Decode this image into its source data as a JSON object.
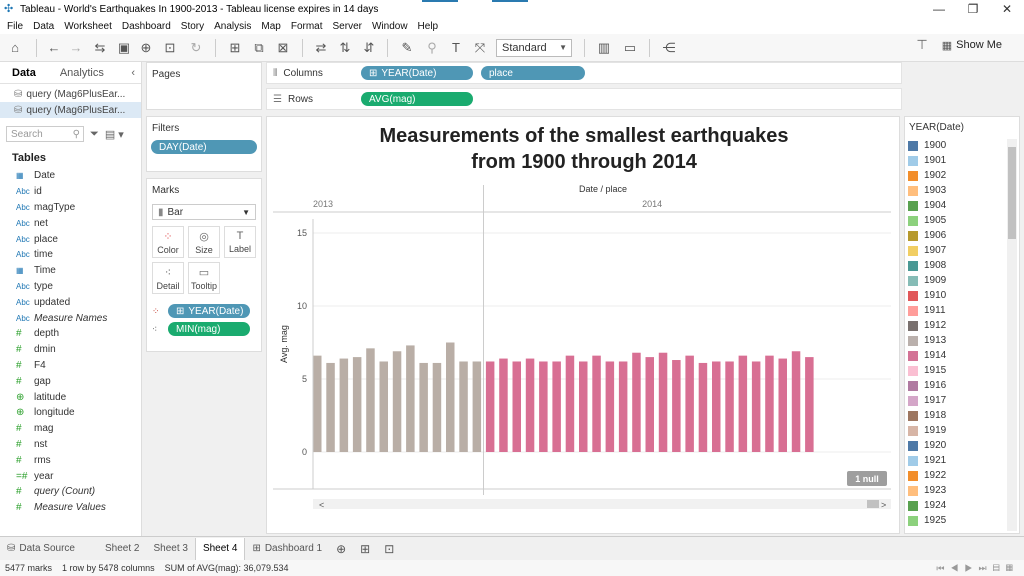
{
  "window": {
    "title": "Tableau - World's Earthquakes In 1900-2013 - Tableau license expires in 14 days",
    "controls": [
      "minimize-icon",
      "restore-icon",
      "close-icon"
    ]
  },
  "menu": [
    "File",
    "Data",
    "Worksheet",
    "Dashboard",
    "Story",
    "Analysis",
    "Map",
    "Format",
    "Server",
    "Window",
    "Help"
  ],
  "toolbar": {
    "fit": "Standard",
    "show_me": "Show Me"
  },
  "data_pane": {
    "tab_data": "Data",
    "tab_analytics": "Analytics",
    "sources": [
      "query (Mag6PlusEar...",
      "query (Mag6PlusEar..."
    ],
    "search_placeholder": "Search",
    "tables_heading": "Tables",
    "fields": [
      {
        "type": "date",
        "name": "Date"
      },
      {
        "type": "Abc",
        "name": "id"
      },
      {
        "type": "Abc",
        "name": "magType"
      },
      {
        "type": "Abc",
        "name": "net"
      },
      {
        "type": "Abc",
        "name": "place"
      },
      {
        "type": "Abc",
        "name": "time"
      },
      {
        "type": "date",
        "name": "Time"
      },
      {
        "type": "Abc",
        "name": "type"
      },
      {
        "type": "Abc",
        "name": "updated"
      },
      {
        "type": "Abc",
        "name": "Measure Names",
        "italic": true
      },
      {
        "type": "#",
        "name": "depth"
      },
      {
        "type": "#",
        "name": "dmin"
      },
      {
        "type": "#",
        "name": "F4"
      },
      {
        "type": "#",
        "name": "gap"
      },
      {
        "type": "geo",
        "name": "latitude"
      },
      {
        "type": "geo",
        "name": "longitude"
      },
      {
        "type": "#",
        "name": "mag"
      },
      {
        "type": "#",
        "name": "nst"
      },
      {
        "type": "#",
        "name": "rms"
      },
      {
        "type": "=#",
        "name": "year"
      },
      {
        "type": "#",
        "name": "query (Count)",
        "italic": true
      },
      {
        "type": "#",
        "name": "Measure Values",
        "italic": true
      }
    ]
  },
  "pages": {
    "heading": "Pages"
  },
  "filters": {
    "heading": "Filters",
    "pill": "DAY(Date)"
  },
  "marks": {
    "heading": "Marks",
    "type": "Bar",
    "buttons": [
      "Color",
      "Size",
      "Label",
      "Detail",
      "Tooltip"
    ],
    "pills": [
      "YEAR(Date)",
      "MIN(mag)"
    ]
  },
  "shelves": {
    "columns_label": "Columns",
    "columns_pills": [
      "YEAR(Date)",
      "place"
    ],
    "rows_label": "Rows",
    "rows_pills": [
      "AVG(mag)"
    ]
  },
  "chart_data": {
    "type": "bar",
    "title_bold": "Measurements",
    "title_rest": " of the smallest earthquakes",
    "title_line2": "from 1900 through 2014",
    "header": "Date / place",
    "ylabel": "Avg. mag",
    "ylim": [
      0,
      17
    ],
    "yticks": [
      0,
      5,
      10,
      15
    ],
    "null_badge": "1 null",
    "groups": [
      {
        "label": "2013",
        "color": "#b9aea6",
        "values": [
          6.6,
          6.1,
          6.4,
          6.5,
          7.1,
          6.2,
          6.9,
          7.3,
          6.1,
          6.1,
          7.5,
          6.2,
          6.2
        ]
      },
      {
        "label": "2014",
        "color": "#d86f93",
        "values": [
          6.2,
          6.4,
          6.2,
          6.4,
          6.2,
          6.2,
          6.6,
          6.2,
          6.6,
          6.2,
          6.2,
          6.8,
          6.5,
          6.8,
          6.3,
          6.6,
          6.1,
          6.2,
          6.2,
          6.6,
          6.2,
          6.6,
          6.4,
          6.9,
          6.5
        ]
      }
    ]
  },
  "legend": {
    "title": "YEAR(Date)",
    "items": [
      {
        "label": "1900",
        "color": "#4e79a7"
      },
      {
        "label": "1901",
        "color": "#a0cbe8"
      },
      {
        "label": "1902",
        "color": "#f28e2b"
      },
      {
        "label": "1903",
        "color": "#ffbe7d"
      },
      {
        "label": "1904",
        "color": "#59a14f"
      },
      {
        "label": "1905",
        "color": "#8cd17d"
      },
      {
        "label": "1906",
        "color": "#b6992d"
      },
      {
        "label": "1907",
        "color": "#f1ce63"
      },
      {
        "label": "1908",
        "color": "#499894"
      },
      {
        "label": "1909",
        "color": "#86bcb6"
      },
      {
        "label": "1910",
        "color": "#e15759"
      },
      {
        "label": "1911",
        "color": "#ff9d9a"
      },
      {
        "label": "1912",
        "color": "#79706e"
      },
      {
        "label": "1913",
        "color": "#bab0ac"
      },
      {
        "label": "1914",
        "color": "#d37295"
      },
      {
        "label": "1915",
        "color": "#fabfd2"
      },
      {
        "label": "1916",
        "color": "#b07aa1"
      },
      {
        "label": "1917",
        "color": "#d4a6c8"
      },
      {
        "label": "1918",
        "color": "#9d7660"
      },
      {
        "label": "1919",
        "color": "#d7b5a6"
      },
      {
        "label": "1920",
        "color": "#4e79a7"
      },
      {
        "label": "1921",
        "color": "#a0cbe8"
      },
      {
        "label": "1922",
        "color": "#f28e2b"
      },
      {
        "label": "1923",
        "color": "#ffbe7d"
      },
      {
        "label": "1924",
        "color": "#59a14f"
      },
      {
        "label": "1925",
        "color": "#8cd17d"
      }
    ]
  },
  "sheet_tabs": {
    "data_source": "Data Source",
    "sheets": [
      "Sheet 2",
      "Sheet 3",
      "Sheet 4",
      "Dashboard 1"
    ],
    "active": "Sheet 4"
  },
  "status": {
    "marks": "5477 marks",
    "dims": "1 row by 5478 columns",
    "sum": "SUM of AVG(mag): 36,079.534"
  }
}
